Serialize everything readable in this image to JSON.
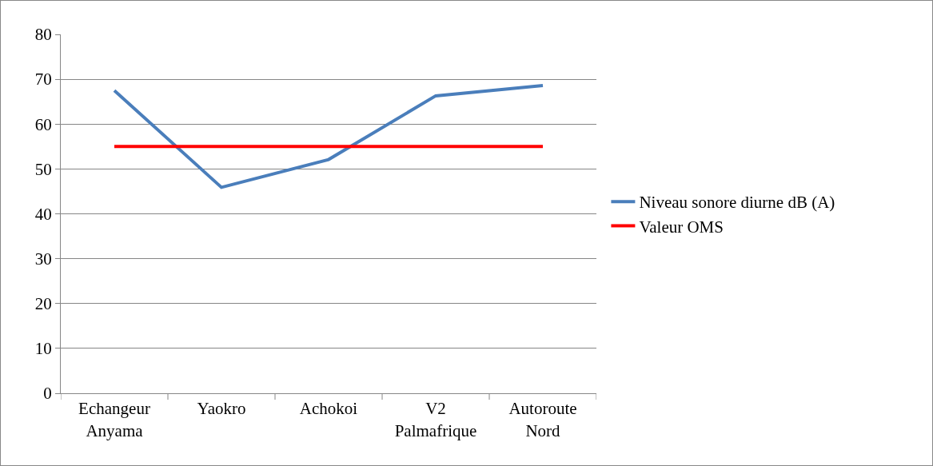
{
  "chart_data": {
    "type": "line",
    "categories": [
      "Echangeur Anyama",
      "Yaokro",
      "Achokoi",
      "V2 Palmafrique",
      "Autoroute Nord"
    ],
    "series": [
      {
        "name": "Niveau sonore diurne dB (A)",
        "color": "#4a7ebb",
        "values": [
          67.5,
          45.9,
          52.1,
          66.3,
          68.6
        ]
      },
      {
        "name": "Valeur OMS",
        "color": "#ff0000",
        "values": [
          55,
          55,
          55,
          55,
          55
        ]
      }
    ],
    "ylim": [
      0,
      80
    ],
    "yticks": [
      0,
      10,
      20,
      30,
      40,
      50,
      60,
      70,
      80
    ],
    "grid": "y",
    "legend": "right",
    "marker": "none",
    "line_style": "solid"
  }
}
